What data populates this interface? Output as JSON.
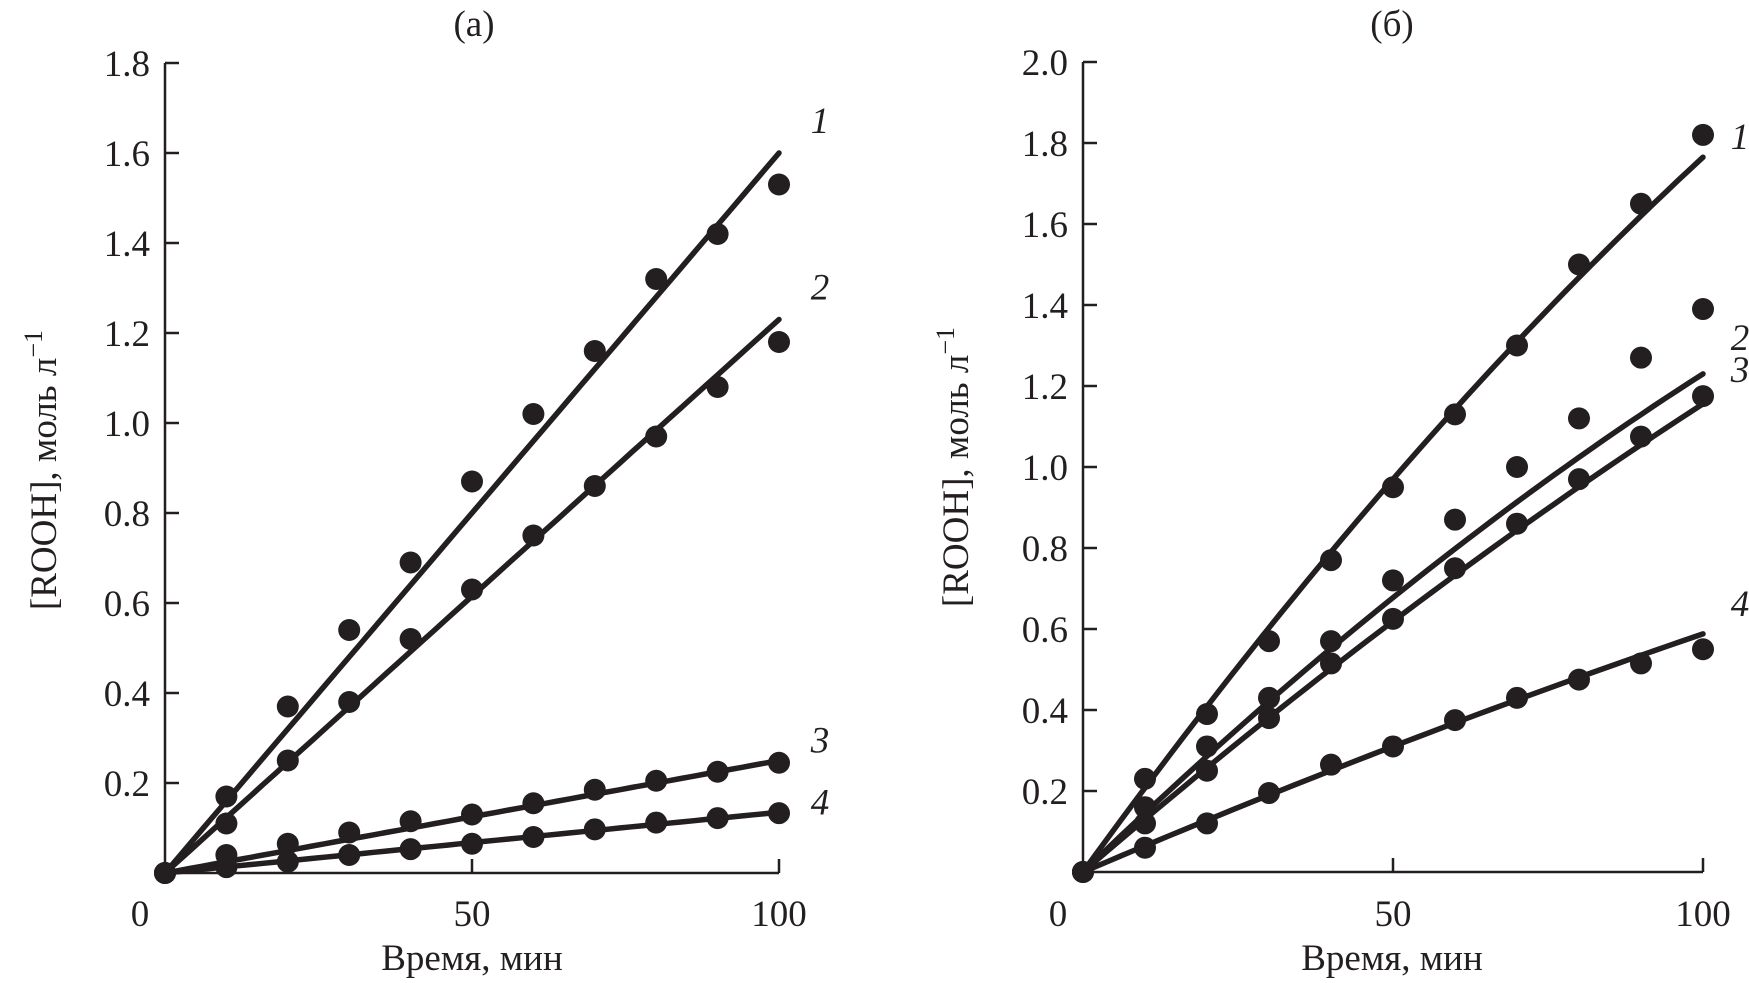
{
  "chart_data": [
    {
      "type": "scatter",
      "title": "(a)",
      "xlabel": "Время, мин",
      "ylabel": "[ROOH], моль л",
      "ylabel_superscript": "−1",
      "xlim": [
        0,
        100
      ],
      "ylim": [
        0,
        1.8
      ],
      "xticks": [
        0,
        50,
        100
      ],
      "xtick_labels": [
        "0",
        "50",
        "100"
      ],
      "yticks": [
        0.2,
        0.4,
        0.6,
        0.8,
        1.0,
        1.2,
        1.4,
        1.6,
        1.8
      ],
      "ytick_labels": [
        "0.2",
        "0.4",
        "0.6",
        "0.8",
        "1.0",
        "1.2",
        "1.4",
        "1.6",
        "1.8"
      ],
      "grid": false,
      "legend": "curve labels at right end of each line",
      "x": [
        0,
        10,
        20,
        30,
        40,
        50,
        60,
        70,
        80,
        90,
        100
      ],
      "series": [
        {
          "name": "1",
          "values": [
            0,
            0.17,
            0.37,
            0.54,
            0.69,
            0.87,
            1.02,
            1.16,
            1.32,
            1.42,
            1.53
          ],
          "fit": {
            "kind": "linear",
            "slope": 0.016,
            "quad": 0
          }
        },
        {
          "name": "2",
          "values": [
            0,
            0.11,
            0.25,
            0.38,
            0.52,
            0.63,
            0.75,
            0.86,
            0.97,
            1.08,
            1.18
          ],
          "fit": {
            "kind": "linear",
            "slope": 0.0123,
            "quad": 0
          }
        },
        {
          "name": "3",
          "values": [
            0,
            0.04,
            0.065,
            0.09,
            0.115,
            0.13,
            0.155,
            0.185,
            0.205,
            0.225,
            0.245
          ],
          "fit": {
            "kind": "linear",
            "slope": 0.0025,
            "quad": 0
          }
        },
        {
          "name": "4",
          "values": [
            0,
            0.013,
            0.025,
            0.04,
            0.053,
            0.065,
            0.08,
            0.097,
            0.112,
            0.122,
            0.133
          ],
          "fit": {
            "kind": "linear",
            "slope": 0.00135,
            "quad": 0
          }
        }
      ]
    },
    {
      "type": "scatter",
      "title": "(б)",
      "xlabel": "Время, мин",
      "ylabel": "[ROOH], моль л",
      "ylabel_superscript": "−1",
      "xlim": [
        0,
        100
      ],
      "ylim": [
        0,
        2.0
      ],
      "xticks": [
        0,
        50,
        100
      ],
      "xtick_labels": [
        "0",
        "50",
        "100"
      ],
      "yticks": [
        0.2,
        0.4,
        0.6,
        0.8,
        1.0,
        1.2,
        1.4,
        1.6,
        1.8,
        2.0
      ],
      "ytick_labels": [
        "0.2",
        "0.4",
        "0.6",
        "0.8",
        "1.0",
        "1.2",
        "1.4",
        "1.6",
        "1.8",
        "2.0"
      ],
      "grid": false,
      "legend": "curve labels at right end of each line",
      "x": [
        0,
        10,
        20,
        30,
        40,
        50,
        60,
        70,
        80,
        90,
        100
      ],
      "series": [
        {
          "name": "1",
          "values": [
            0,
            0.23,
            0.39,
            0.57,
            0.77,
            0.95,
            1.13,
            1.3,
            1.5,
            1.65,
            1.82
          ],
          "fit": {
            "kind": "quadratic",
            "slope": 0.02115,
            "quad": -3.5e-05
          }
        },
        {
          "name": "2",
          "values": [
            0,
            0.16,
            0.31,
            0.43,
            0.57,
            0.72,
            0.87,
            1.0,
            1.12,
            1.27,
            1.39
          ],
          "fit": {
            "kind": "quadratic",
            "slope": 0.0148,
            "quad": -2.5e-05
          }
        },
        {
          "name": "3",
          "values": [
            0,
            0.12,
            0.25,
            0.38,
            0.515,
            0.625,
            0.75,
            0.86,
            0.97,
            1.075,
            1.175
          ],
          "fit": {
            "kind": "quadratic",
            "slope": 0.0132,
            "quad": -1.64e-05
          }
        },
        {
          "name": "4",
          "values": [
            0,
            0.06,
            0.12,
            0.195,
            0.265,
            0.31,
            0.375,
            0.43,
            0.475,
            0.515,
            0.55
          ],
          "fit": {
            "kind": "quadratic",
            "slope": 0.00652,
            "quad": -6.4e-06
          }
        }
      ]
    }
  ],
  "colors": {
    "ink": "#231f20",
    "background": "#ffffff"
  }
}
